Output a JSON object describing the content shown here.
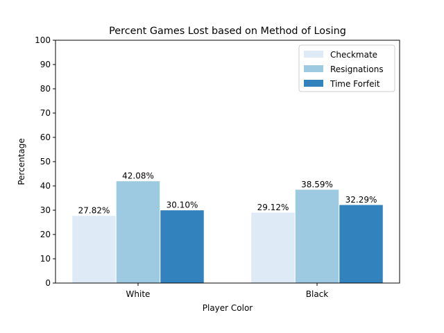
{
  "chart_data": {
    "type": "bar",
    "title": "Percent Games Lost based on Method of Losing",
    "xlabel": "Player Color",
    "ylabel": "Percentage",
    "ylim": [
      0,
      100
    ],
    "yticks": [
      0,
      10,
      20,
      30,
      40,
      50,
      60,
      70,
      80,
      90,
      100
    ],
    "categories": [
      "White",
      "Black"
    ],
    "series": [
      {
        "name": "Checkmate",
        "values": [
          27.82,
          29.12
        ],
        "labels": [
          "27.82%",
          "29.12%"
        ],
        "color": "#deebf7"
      },
      {
        "name": "Resignations",
        "values": [
          42.08,
          38.59
        ],
        "labels": [
          "42.08%",
          "38.59%"
        ],
        "color": "#9ecae1"
      },
      {
        "name": "Time Forfeit",
        "values": [
          30.1,
          32.29
        ],
        "labels": [
          "30.10%",
          "32.29%"
        ],
        "color": "#3182bd"
      }
    ],
    "legend": "top-right",
    "grid": false
  }
}
